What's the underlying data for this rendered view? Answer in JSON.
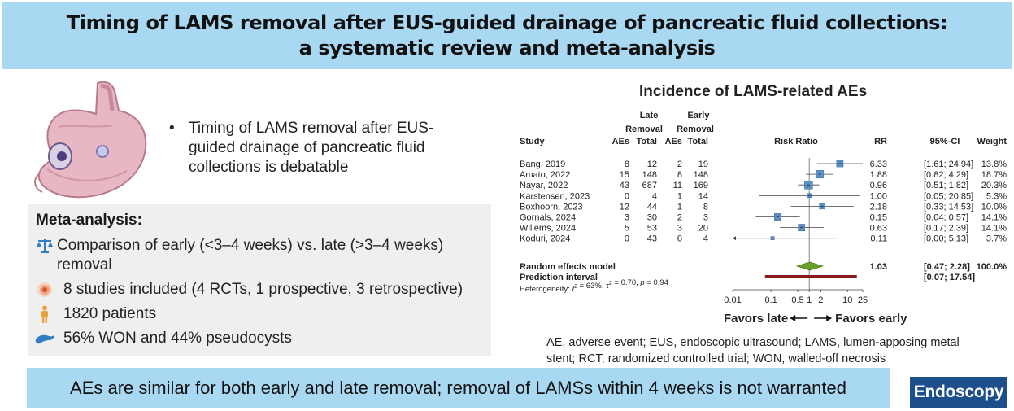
{
  "title": {
    "line1": "Timing of LAMS removal after EUS-guided drainage of pancreatic fluid collections:",
    "line2": "a systematic review and meta-analysis"
  },
  "intro": {
    "bullet": "•",
    "text": "Timing of LAMS removal after EUS-guided drainage of pancreatic fluid collections is debatable"
  },
  "meta_analysis": {
    "heading": "Meta-analysis:",
    "items": [
      {
        "icon": "balance-scale-icon",
        "text": "Comparison of early (<3–4 weeks) vs. late (>3–4 weeks) removal"
      },
      {
        "icon": "target-rings-icon",
        "text": "8 studies included (4 RCTs, 1 prospective, 3 retrospective)"
      },
      {
        "icon": "patient-figure-icon",
        "text": "1820 patients"
      },
      {
        "icon": "pancreas-icon",
        "text": "56% WON and 44% pseudocysts"
      }
    ]
  },
  "chart_data": {
    "type": "forest",
    "title": "Incidence of LAMS-related AEs",
    "group_headers": {
      "late": [
        "Late",
        "Removal"
      ],
      "early": [
        "Early",
        "Removal"
      ]
    },
    "columns": {
      "study": "Study",
      "aes": "AEs",
      "total": "Total",
      "plot": "Risk Ratio",
      "rr": "RR",
      "ci": "95%-CI",
      "weight": "Weight"
    },
    "x_scale": "log",
    "x_ticks": [
      "0.01",
      "0.1",
      "0.5",
      "1",
      "2",
      "10",
      "25"
    ],
    "x_tick_values": [
      0.01,
      0.1,
      0.5,
      1,
      2,
      10,
      25
    ],
    "xlim": [
      0.01,
      25
    ],
    "studies": [
      {
        "name": "Bang, 2019",
        "late_aes": 8,
        "late_total": 12,
        "early_aes": 2,
        "early_total": 19,
        "rr": 6.33,
        "lo": 1.61,
        "hi": 24.94,
        "rr_text": "6.33",
        "ci_text": "[1.61; 24.94]",
        "weight_text": "13.8%",
        "weight": 13.8
      },
      {
        "name": "Amato, 2022",
        "late_aes": 15,
        "late_total": 148,
        "early_aes": 8,
        "early_total": 148,
        "rr": 1.88,
        "lo": 0.82,
        "hi": 4.29,
        "rr_text": "1.88",
        "ci_text": "[0.82; 4.29]",
        "weight_text": "18.7%",
        "weight": 18.7
      },
      {
        "name": "Nayar, 2022",
        "late_aes": 43,
        "late_total": 687,
        "early_aes": 11,
        "early_total": 169,
        "rr": 0.96,
        "lo": 0.51,
        "hi": 1.82,
        "rr_text": "0.96",
        "ci_text": "[0.51; 1.82]",
        "weight_text": "20.3%",
        "weight": 20.3
      },
      {
        "name": "Karstensen, 2023",
        "late_aes": 0,
        "late_total": 4,
        "early_aes": 1,
        "early_total": 14,
        "rr": 1.0,
        "lo": 0.05,
        "hi": 20.85,
        "rr_text": "1.00",
        "ci_text": "[0.05; 20.85]",
        "weight_text": "5.3%",
        "weight": 5.3
      },
      {
        "name": "Boxhoorn, 2023",
        "late_aes": 12,
        "late_total": 44,
        "early_aes": 1,
        "early_total": 8,
        "rr": 2.18,
        "lo": 0.33,
        "hi": 14.53,
        "rr_text": "2.18",
        "ci_text": "[0.33; 14.53]",
        "weight_text": "10.0%",
        "weight": 10.0
      },
      {
        "name": "Gornals, 2024",
        "late_aes": 3,
        "late_total": 30,
        "early_aes": 2,
        "early_total": 3,
        "rr": 0.15,
        "lo": 0.04,
        "hi": 0.57,
        "rr_text": "0.15",
        "ci_text": "[0.04; 0.57]",
        "weight_text": "14.1%",
        "weight": 14.1
      },
      {
        "name": "Willems, 2024",
        "late_aes": 5,
        "late_total": 53,
        "early_aes": 3,
        "early_total": 20,
        "rr": 0.63,
        "lo": 0.17,
        "hi": 2.39,
        "rr_text": "0.63",
        "ci_text": "[0.17; 2.39]",
        "weight_text": "14.1%",
        "weight": 14.1
      },
      {
        "name": "Koduri, 2024",
        "late_aes": 0,
        "late_total": 43,
        "early_aes": 0,
        "early_total": 4,
        "rr": 0.11,
        "lo": 0.0,
        "hi": 5.13,
        "rr_text": "0.11",
        "ci_text": "[0.00; 5.13]",
        "weight_text": "3.7%",
        "weight": 3.7
      }
    ],
    "random_effects": {
      "label": "Random effects model",
      "rr": 1.03,
      "lo": 0.47,
      "hi": 2.28,
      "rr_text": "1.03",
      "ci_text": "[0.47; 2.28]",
      "weight_text": "100.0%"
    },
    "prediction_interval": {
      "label": "Prediction interval",
      "lo": 0.07,
      "hi": 17.54,
      "ci_text": "[0.07; 17.54]"
    },
    "heterogeneity": {
      "prefix": "Heterogeneity: ",
      "i2": "63%",
      "tau2": "0.70",
      "p": "0.94"
    },
    "favors_left": "Favors late",
    "favors_right": "Favors early",
    "colors": {
      "square": "#5b8ec4",
      "diamond": "#6a9e2a",
      "prediction": "#8b1a1a",
      "line": "#444444"
    }
  },
  "footnote": "AE, adverse event; EUS, endoscopic ultrasound; LAMS, lumen-apposing metal stent; RCT, randomized controlled trial; WON, walled-off necrosis",
  "conclusion": "AEs are similar for both early and late removal; removal of LAMSs within 4 weeks is not warranted",
  "logo": "Endoscopy",
  "colors": {
    "banner": "#a9d8f2",
    "box": "#efefef",
    "logo_bg": "#1d4f8c"
  }
}
